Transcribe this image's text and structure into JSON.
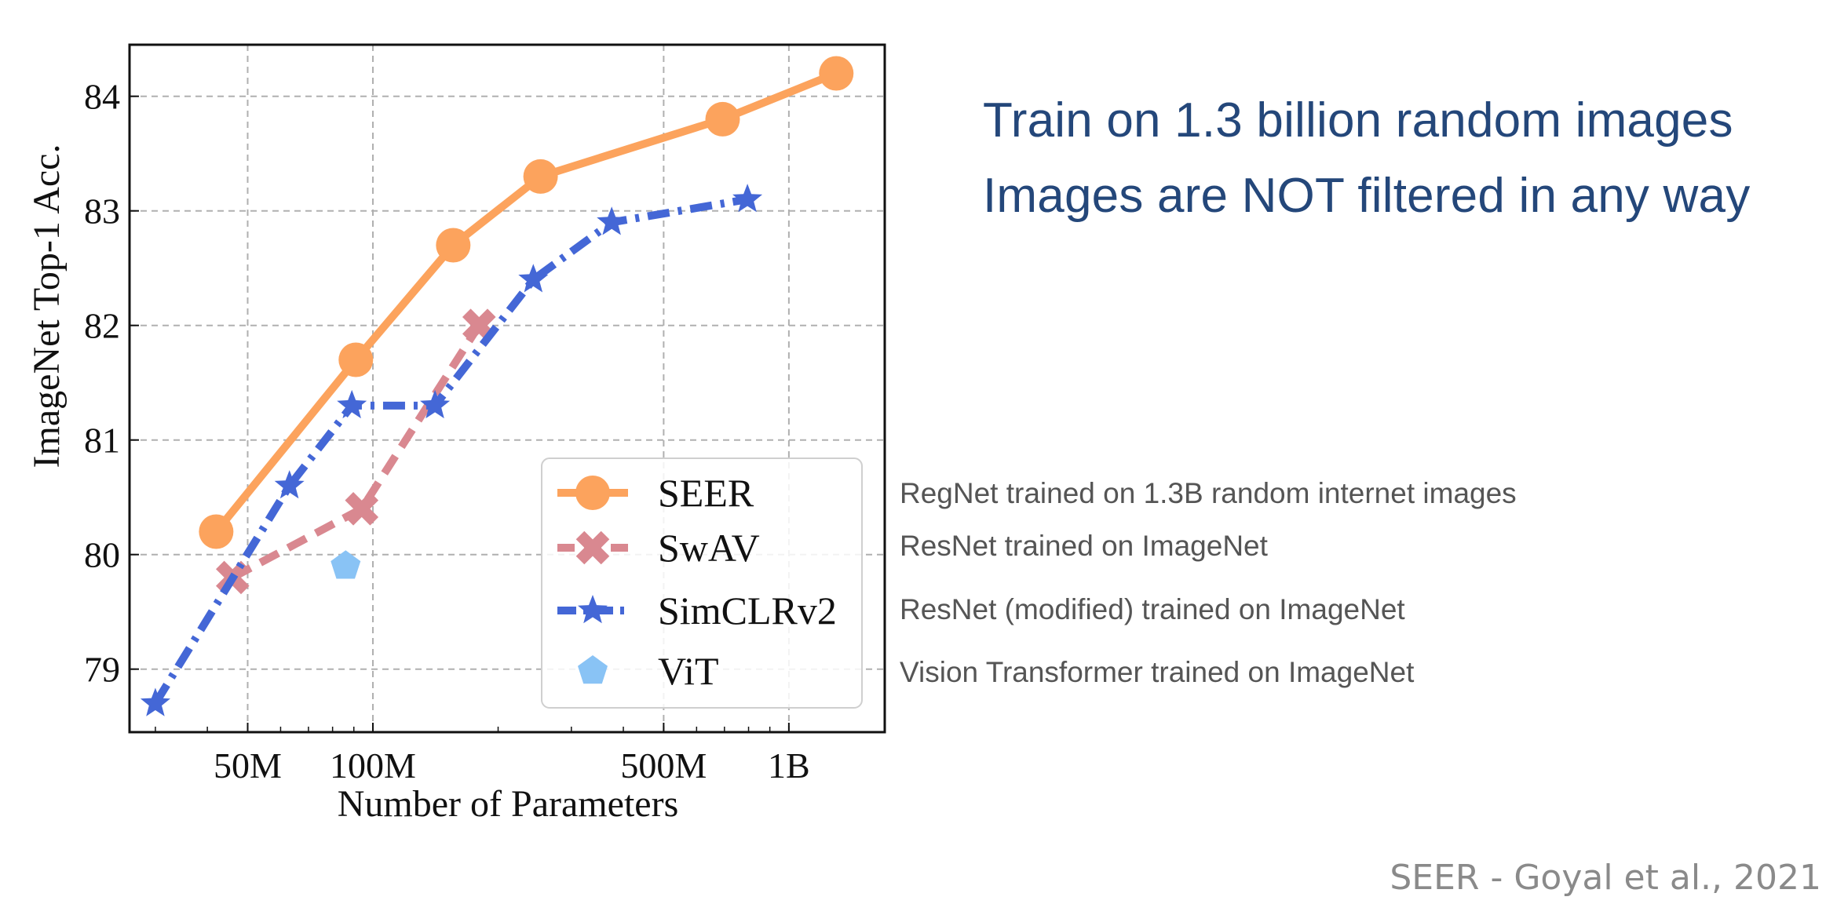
{
  "headline": {
    "line1": "Train on 1.3 billion random images",
    "line2": "Images are NOT filtered in any way"
  },
  "descriptions": [
    "RegNet trained on 1.3B random internet images",
    "ResNet trained on ImageNet",
    "ResNet (modified) trained on ImageNet",
    "Vision Transformer trained on ImageNet"
  ],
  "credit": "SEER - Goyal et al., 2021",
  "chart_data": {
    "type": "line",
    "title": "",
    "xlabel": "Number of Parameters",
    "ylabel": "ImageNet Top-1 Acc.",
    "x_scale": "log",
    "xlim": [
      26000000,
      1700000000
    ],
    "ylim": [
      78.45,
      84.45
    ],
    "grid": true,
    "legend_position": "lower-right",
    "x_ticks": [
      {
        "value": 50000000,
        "label": "50M"
      },
      {
        "value": 100000000,
        "label": "100M"
      },
      {
        "value": 500000000,
        "label": "500M"
      },
      {
        "value": 1000000000,
        "label": "1B"
      }
    ],
    "y_ticks": [
      {
        "value": 79,
        "label": "79"
      },
      {
        "value": 80,
        "label": "80"
      },
      {
        "value": 81,
        "label": "81"
      },
      {
        "value": 82,
        "label": "82"
      },
      {
        "value": 83,
        "label": "83"
      },
      {
        "value": 84,
        "label": "84"
      }
    ],
    "series": [
      {
        "name": "SEER",
        "color": "#fca35d",
        "marker": "circle",
        "line": "solid",
        "points": [
          {
            "x": 42000000,
            "y": 80.2
          },
          {
            "x": 91000000,
            "y": 81.7
          },
          {
            "x": 156000000,
            "y": 82.7
          },
          {
            "x": 253000000,
            "y": 83.3
          },
          {
            "x": 693000000,
            "y": 83.8
          },
          {
            "x": 1300000000,
            "y": 84.2
          }
        ]
      },
      {
        "name": "SwAV",
        "color": "#d98890",
        "marker": "x",
        "line": "dashed",
        "points": [
          {
            "x": 46000000,
            "y": 79.8
          },
          {
            "x": 94000000,
            "y": 80.4
          },
          {
            "x": 180000000,
            "y": 82.0
          }
        ]
      },
      {
        "name": "SimCLRv2",
        "color": "#4467d6",
        "marker": "star",
        "line": "dashdot",
        "points": [
          {
            "x": 30000000,
            "y": 78.7
          },
          {
            "x": 63000000,
            "y": 80.6
          },
          {
            "x": 89000000,
            "y": 81.3
          },
          {
            "x": 141000000,
            "y": 81.3
          },
          {
            "x": 243000000,
            "y": 82.4
          },
          {
            "x": 375000000,
            "y": 82.9
          },
          {
            "x": 795000000,
            "y": 83.1
          }
        ]
      },
      {
        "name": "ViT",
        "color": "#89c3f5",
        "marker": "pentagon",
        "line": "none",
        "points": [
          {
            "x": 86000000,
            "y": 79.9
          }
        ]
      }
    ]
  }
}
